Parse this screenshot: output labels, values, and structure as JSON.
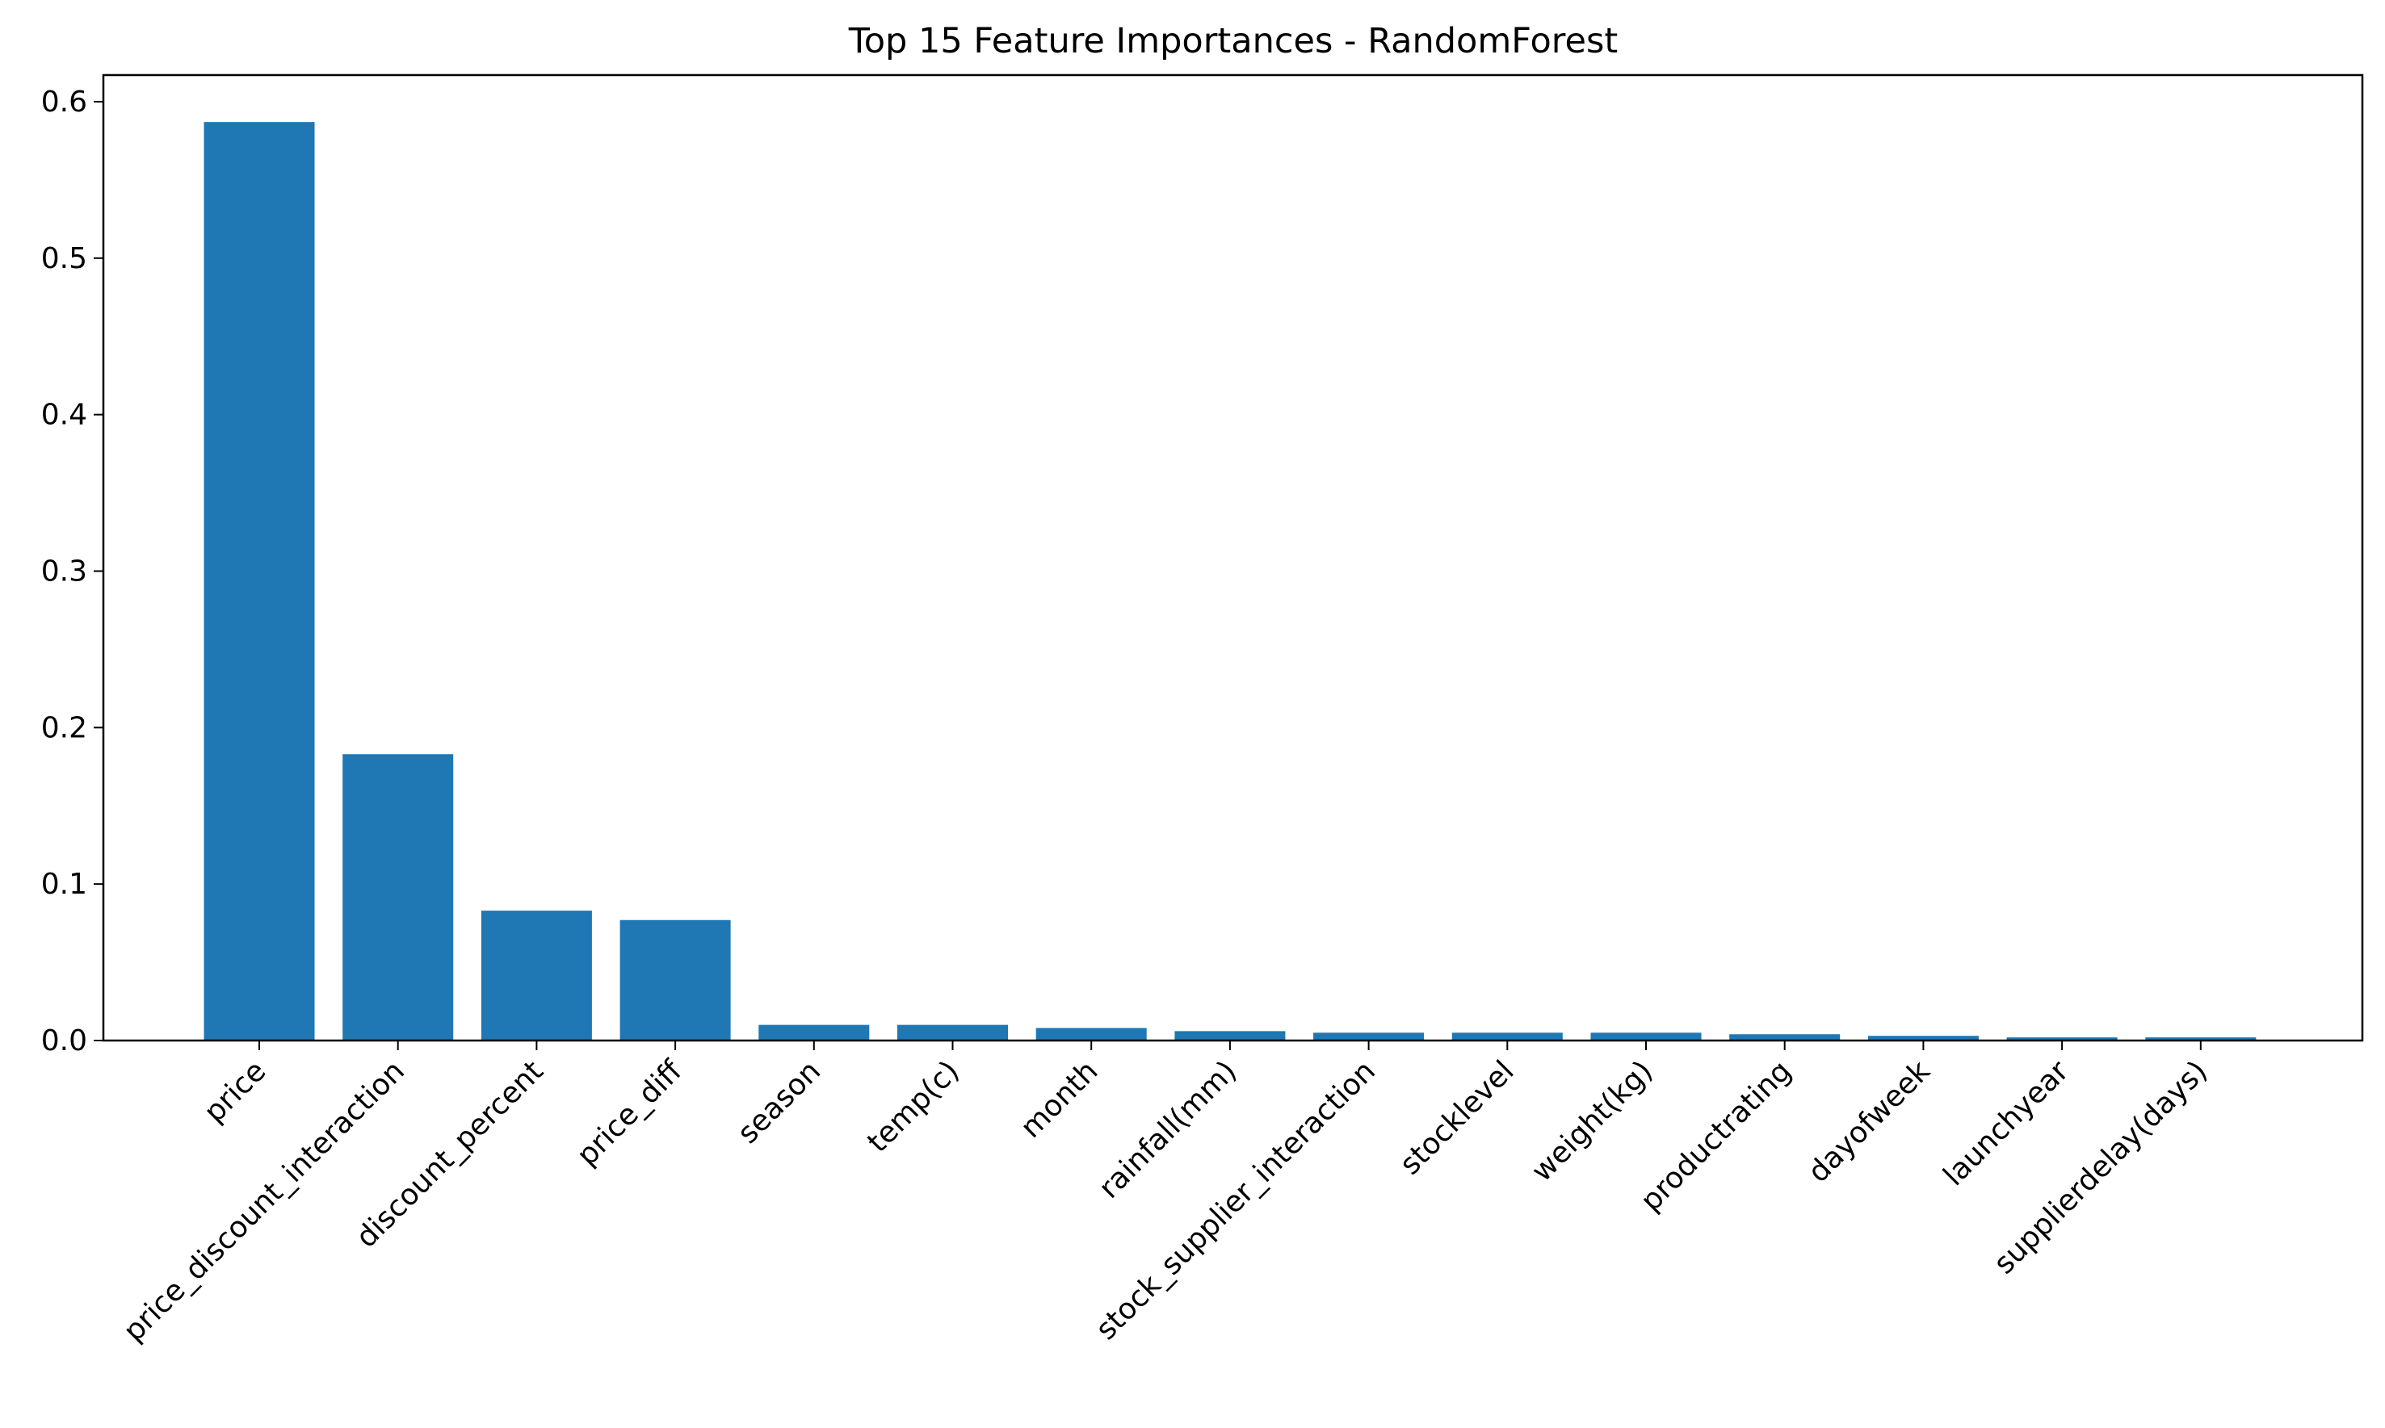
{
  "chart_data": {
    "type": "bar",
    "title": "Top 15 Feature Importances - RandomForest",
    "xlabel": "",
    "ylabel": "",
    "categories": [
      "price",
      "price_discount_interaction",
      "discount_percent",
      "price_diff",
      "season",
      "temp(c)",
      "month",
      "rainfall(mm)",
      "stock_supplier_interaction",
      "stocklevel",
      "weight(kg)",
      "productrating",
      "dayofweek",
      "launchyear",
      "supplierdelay(days)"
    ],
    "values": [
      0.587,
      0.183,
      0.083,
      0.077,
      0.01,
      0.01,
      0.008,
      0.006,
      0.005,
      0.005,
      0.005,
      0.004,
      0.003,
      0.002,
      0.002
    ],
    "ylim": [
      0,
      0.617
    ],
    "yticks": [
      0.0,
      0.1,
      0.2,
      0.3,
      0.4,
      0.5,
      0.6
    ],
    "ytick_labels": [
      "0.0",
      "0.1",
      "0.2",
      "0.3",
      "0.4",
      "0.5",
      "0.6"
    ],
    "grid": false,
    "legend": "none",
    "bar_color": "#1f77b4"
  }
}
